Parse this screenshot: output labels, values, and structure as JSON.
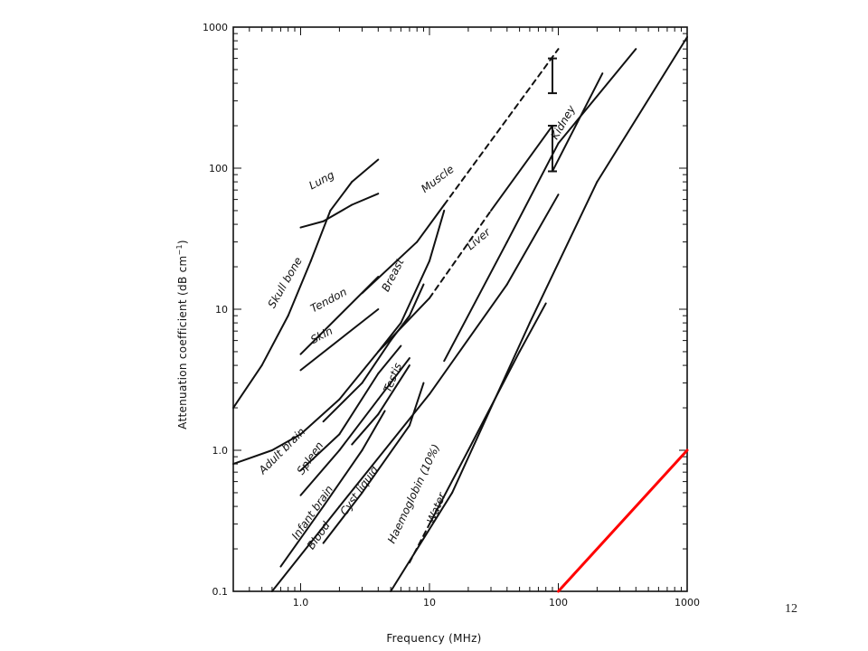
{
  "page_number": "12",
  "chart_data": {
    "type": "line",
    "xlabel": "Frequency (MHz)",
    "ylabel": "Attenuation coefficient (dB cm",
    "ylabel_superscript": "−1",
    "ylabel_suffix": ")",
    "xscale": "log",
    "yscale": "log",
    "xlim": [
      0.3,
      1000
    ],
    "ylim": [
      0.1,
      1000
    ],
    "x_ticks": [
      {
        "value": 1,
        "label": "1.0"
      },
      {
        "value": 10,
        "label": "10"
      },
      {
        "value": 100,
        "label": "100"
      },
      {
        "value": 1000,
        "label": "1000"
      }
    ],
    "y_ticks": [
      {
        "value": 0.1,
        "label": "0.1"
      },
      {
        "value": 1,
        "label": "1.0"
      },
      {
        "value": 10,
        "label": "10"
      },
      {
        "value": 100,
        "label": "100"
      },
      {
        "value": 1000,
        "label": "1000"
      }
    ],
    "series": [
      {
        "name": "Lung",
        "color": "#111111",
        "points": [
          [
            1,
            38
          ],
          [
            1.5,
            42
          ],
          [
            2.5,
            55
          ],
          [
            4,
            66
          ]
        ]
      },
      {
        "name": "Skull bone",
        "color": "#111111",
        "points": [
          [
            0.3,
            2
          ],
          [
            0.5,
            4
          ],
          [
            0.8,
            9
          ],
          [
            1.2,
            22
          ],
          [
            1.7,
            50
          ],
          [
            2.5,
            80
          ],
          [
            4,
            115
          ]
        ]
      },
      {
        "name": "Tendon",
        "color": "#111111",
        "points": [
          [
            1,
            4.8
          ],
          [
            4,
            17
          ]
        ]
      },
      {
        "name": "Skin",
        "color": "#111111",
        "points": [
          [
            1,
            3.7
          ],
          [
            4,
            10
          ]
        ]
      },
      {
        "name": "Breast",
        "color": "#111111",
        "points": [
          [
            1.5,
            1.6
          ],
          [
            3,
            3
          ],
          [
            5,
            6
          ],
          [
            7,
            9
          ],
          [
            9,
            15
          ]
        ]
      },
      {
        "name": "Adult brain",
        "color": "#111111",
        "points": [
          [
            0.3,
            0.8
          ],
          [
            0.6,
            1
          ],
          [
            1,
            1.3
          ],
          [
            2,
            2.3
          ],
          [
            4,
            5
          ],
          [
            6,
            8
          ],
          [
            10,
            22
          ],
          [
            13,
            50
          ]
        ]
      },
      {
        "name": "Spleen",
        "color": "#111111",
        "points": [
          [
            1,
            0.72
          ],
          [
            2,
            1.3
          ],
          [
            4,
            3.5
          ],
          [
            6,
            5.5
          ]
        ]
      },
      {
        "name": "Infant brain",
        "color": "#111111",
        "points": [
          [
            1,
            0.48
          ],
          [
            2,
            1
          ],
          [
            4,
            2.3
          ],
          [
            7,
            4.5
          ]
        ]
      },
      {
        "name": "Testis",
        "color": "#111111",
        "points": [
          [
            2.5,
            1.1
          ],
          [
            4,
            1.8
          ],
          [
            7,
            4
          ]
        ]
      },
      {
        "name": "Blood",
        "color": "#111111",
        "points": [
          [
            0.7,
            0.15
          ],
          [
            1.5,
            0.4
          ],
          [
            3,
            1
          ],
          [
            4.5,
            1.9
          ]
        ]
      },
      {
        "name": "Cyst liquid",
        "color": "#111111",
        "points": [
          [
            1.5,
            0.22
          ],
          [
            3,
            0.5
          ],
          [
            7,
            1.5
          ],
          [
            9,
            3
          ]
        ]
      },
      {
        "name": "Haemoglobin (10%)",
        "color": "#111111",
        "points": [
          [
            0.6,
            0.1
          ],
          [
            2,
            0.4
          ],
          [
            10,
            2.5
          ],
          [
            40,
            15
          ],
          [
            100,
            65
          ]
        ]
      },
      {
        "name": "Water",
        "color": "#111111",
        "points": [
          [
            7,
            0.16
          ],
          [
            10,
            0.3
          ],
          [
            20,
            1
          ],
          [
            50,
            5
          ],
          [
            80,
            11
          ]
        ]
      },
      {
        "name": "Muscle",
        "color": "#111111",
        "points": [
          [
            3,
            13
          ],
          [
            8,
            30
          ],
          [
            13,
            55
          ],
          [
            100,
            700
          ]
        ]
      },
      {
        "name": "Liver",
        "color": "#111111",
        "points": [
          [
            4,
            5
          ],
          [
            10,
            12
          ],
          [
            30,
            50
          ],
          [
            90,
            200
          ]
        ]
      },
      {
        "name": "Kidney",
        "color": "#111111",
        "points": [
          [
            90,
            95
          ],
          [
            220,
            470
          ]
        ]
      },
      {
        "name": "",
        "color": "#111111",
        "points": [
          [
            13,
            4.3
          ],
          [
            40,
            30
          ],
          [
            100,
            150
          ],
          [
            400,
            700
          ]
        ]
      },
      {
        "name": "",
        "color": "#111111",
        "points": [
          [
            5,
            0.1
          ],
          [
            15,
            0.5
          ],
          [
            60,
            8
          ],
          [
            200,
            80
          ],
          [
            1000,
            850
          ]
        ]
      },
      {
        "name": "",
        "color": "#ff0000",
        "points": [
          [
            100,
            0.1
          ],
          [
            1000,
            1
          ]
        ]
      }
    ],
    "error_bars": [
      {
        "x": 90,
        "low": 340,
        "high": 600
      },
      {
        "x": 90,
        "low": 95,
        "high": 200
      }
    ]
  }
}
